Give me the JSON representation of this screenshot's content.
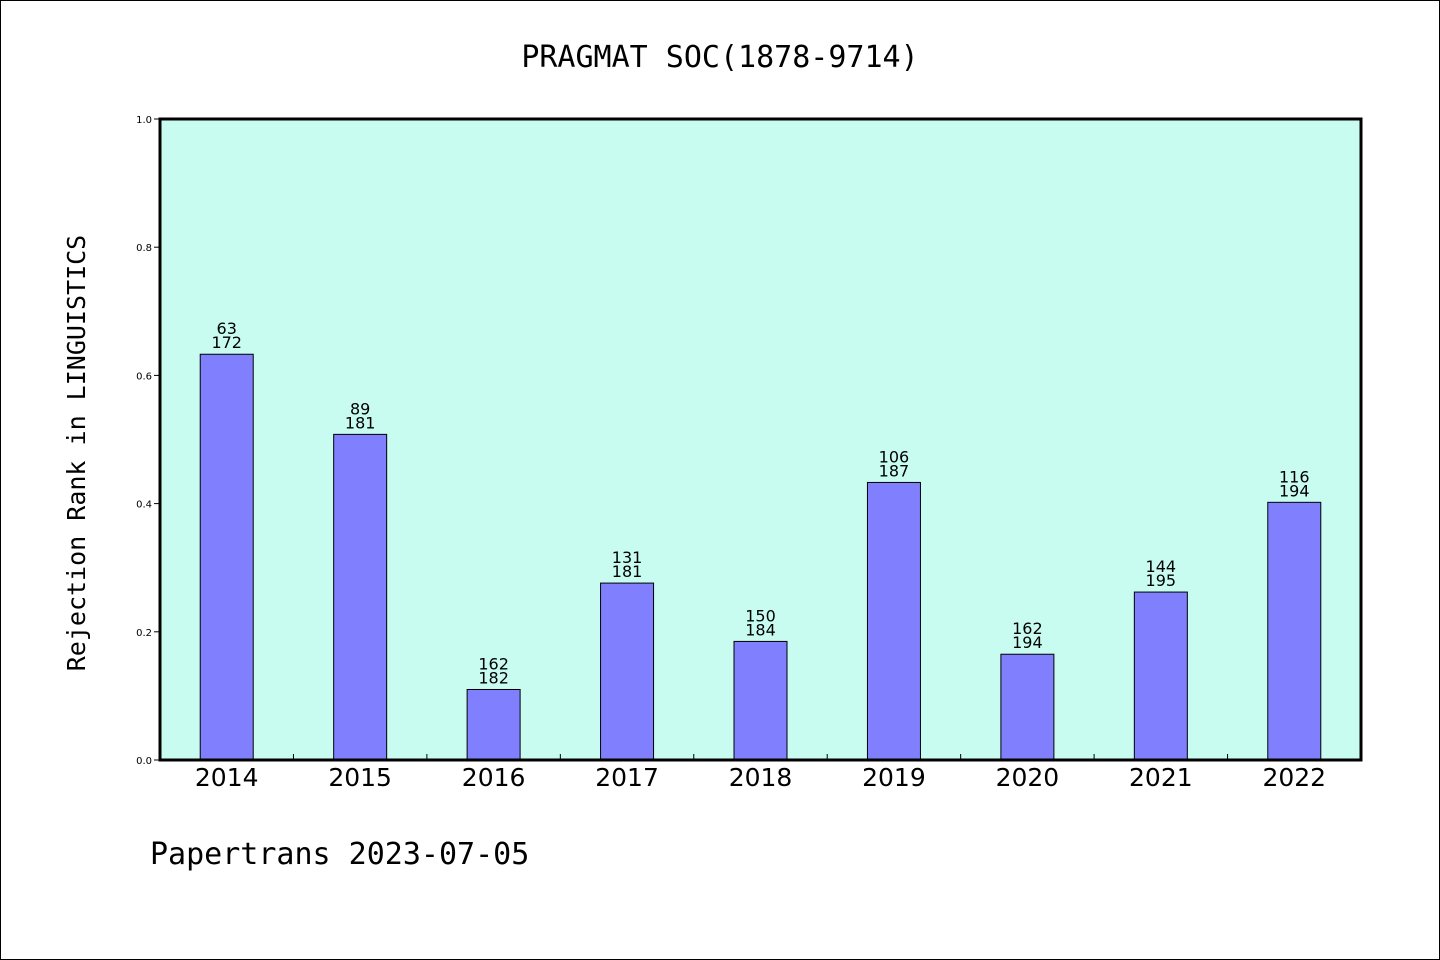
{
  "chart_data": {
    "type": "bar",
    "title": "PRAGMAT SOC(1878-9714)",
    "ylabel": "Rejection Rank in LINGUISTICS",
    "xlabel": "",
    "ylim": [
      0,
      1.0
    ],
    "yticks": [
      "0.0",
      "0.2",
      "0.4",
      "0.6",
      "0.8",
      "1.0"
    ],
    "categories": [
      "2014",
      "2015",
      "2016",
      "2017",
      "2018",
      "2019",
      "2020",
      "2021",
      "2022"
    ],
    "values": [
      0.633,
      0.508,
      0.11,
      0.276,
      0.185,
      0.433,
      0.165,
      0.262,
      0.402
    ],
    "labels_top": [
      "63",
      "89",
      "162",
      "131",
      "150",
      "106",
      "162",
      "144",
      "116"
    ],
    "labels_bottom": [
      "172",
      "181",
      "182",
      "181",
      "184",
      "187",
      "194",
      "195",
      "194"
    ],
    "grid": false,
    "colors": {
      "plot_bg": "#c8fcf0",
      "bar": "#8080ff",
      "edge": "#000000"
    }
  },
  "footer": "Papertrans 2023-07-05"
}
